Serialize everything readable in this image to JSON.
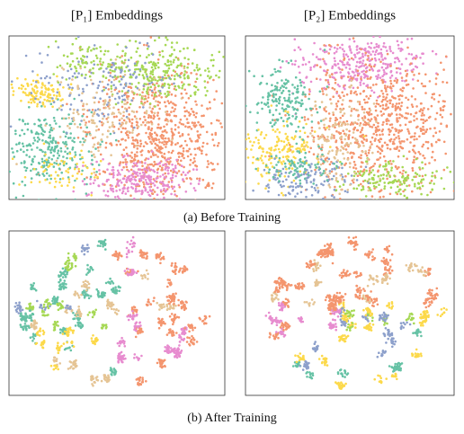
{
  "panels": [
    {
      "title": "[P₁]   Embeddings"
    },
    {
      "title": "[P₂]   Embeddings"
    }
  ],
  "captions": [
    "(a) Before Training",
    "(b) After Training"
  ]
}
